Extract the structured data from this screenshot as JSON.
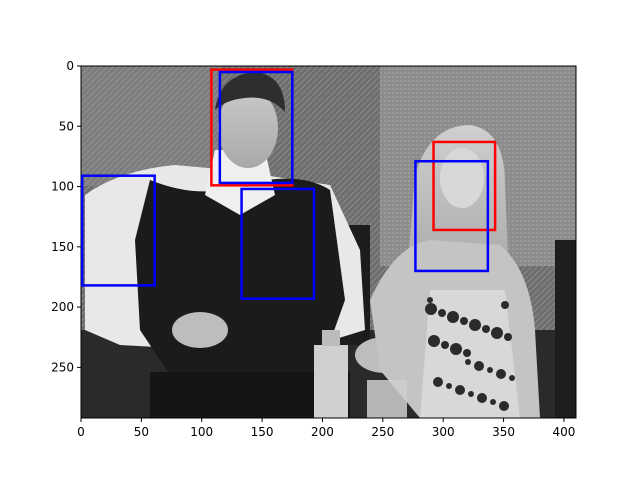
{
  "figure": {
    "image_description_hidden": "",
    "x_axis": {
      "range": [
        0,
        410
      ],
      "ticks": [
        0,
        50,
        100,
        150,
        200,
        250,
        300,
        350,
        400
      ]
    },
    "y_axis": {
      "range": [
        0,
        292
      ],
      "inverted": true,
      "ticks": [
        0,
        50,
        100,
        150,
        200,
        250
      ]
    },
    "boxes": [
      {
        "id": "red-1",
        "color": "#ff0000",
        "x": [
          108,
          175
        ],
        "y": [
          3,
          99
        ]
      },
      {
        "id": "blue-1",
        "color": "#0000ff",
        "x": [
          115,
          175
        ],
        "y": [
          5,
          97
        ]
      },
      {
        "id": "blue-2",
        "color": "#0000ff",
        "x": [
          133,
          193
        ],
        "y": [
          102,
          193
        ]
      },
      {
        "id": "blue-3",
        "color": "#0000ff",
        "x": [
          1,
          61
        ],
        "y": [
          91,
          182
        ]
      },
      {
        "id": "red-2",
        "color": "#ff0000",
        "x": [
          292,
          343
        ],
        "y": [
          63,
          136
        ]
      },
      {
        "id": "blue-4",
        "color": "#0000ff",
        "x": [
          277,
          337
        ],
        "y": [
          79,
          170
        ]
      }
    ]
  }
}
